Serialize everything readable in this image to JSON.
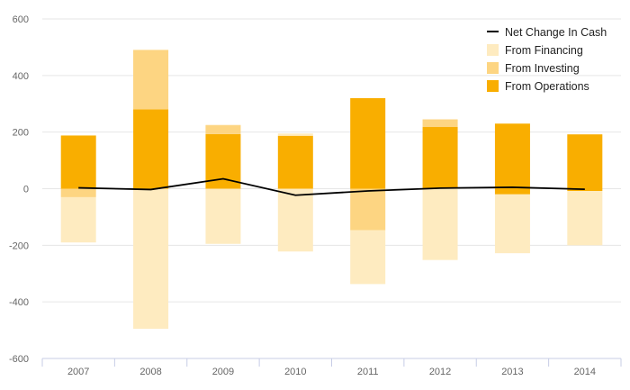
{
  "chart_data": {
    "type": "bar",
    "stacked": true,
    "categories": [
      "2007",
      "2008",
      "2009",
      "2010",
      "2011",
      "2012",
      "2013",
      "2014"
    ],
    "ylim": [
      -600,
      600
    ],
    "yticks": [
      600,
      400,
      200,
      0,
      -200,
      -400,
      -600
    ],
    "ytick_labels": [
      "600",
      "400",
      "200",
      "0",
      "-200",
      "-400",
      "-600"
    ],
    "series": [
      {
        "name": "From Operations",
        "type": "bar",
        "color": "#f9ae00",
        "values": [
          188,
          281,
          193,
          187,
          320,
          218,
          230,
          192
        ]
      },
      {
        "name": "From Investing",
        "type": "bar",
        "color": "#fdd582",
        "values": [
          -30,
          0,
          0,
          0,
          -147,
          0,
          0,
          0
        ]
      },
      {
        "name": "From Financing",
        "type": "bar",
        "color": "#feebc0",
        "values": [
          -160,
          210,
          33,
          8,
          -190,
          27,
          0,
          0
        ]
      },
      {
        "name": "Net Change In Cash",
        "type": "line",
        "color": "#000000",
        "values": [
          3,
          -3,
          35,
          -23,
          -8,
          2,
          5,
          -2
        ]
      }
    ],
    "negative_extras": [
      {
        "series": "From Financing",
        "values": [
          0,
          -495,
          -195,
          -222,
          0,
          -252,
          -228,
          -200
        ]
      },
      {
        "series": "From Operations",
        "values": [
          0,
          0,
          0,
          0,
          0,
          0,
          -20,
          -8
        ]
      }
    ],
    "legend": {
      "position": "top-right",
      "entries": [
        "Net Change In Cash",
        "From Financing",
        "From Investing",
        "From Operations"
      ]
    }
  }
}
